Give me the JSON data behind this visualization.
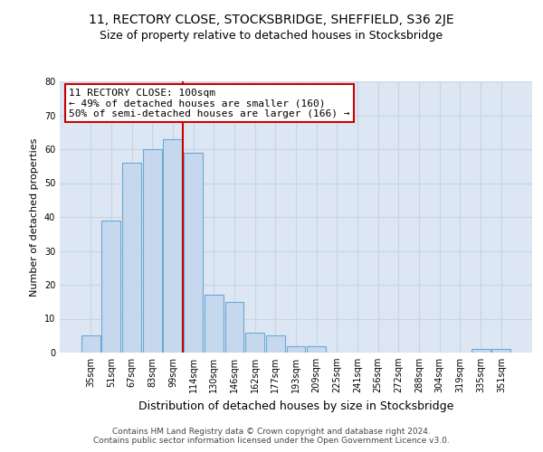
{
  "title": "11, RECTORY CLOSE, STOCKSBRIDGE, SHEFFIELD, S36 2JE",
  "subtitle": "Size of property relative to detached houses in Stocksbridge",
  "xlabel": "Distribution of detached houses by size in Stocksbridge",
  "ylabel": "Number of detached properties",
  "bar_labels": [
    "35sqm",
    "51sqm",
    "67sqm",
    "83sqm",
    "99sqm",
    "114sqm",
    "130sqm",
    "146sqm",
    "162sqm",
    "177sqm",
    "193sqm",
    "209sqm",
    "225sqm",
    "241sqm",
    "256sqm",
    "272sqm",
    "288sqm",
    "304sqm",
    "319sqm",
    "335sqm",
    "351sqm"
  ],
  "bar_values": [
    5,
    39,
    56,
    60,
    63,
    59,
    17,
    15,
    6,
    5,
    2,
    2,
    0,
    0,
    0,
    0,
    0,
    0,
    0,
    1,
    1
  ],
  "bar_color": "#c5d8ee",
  "bar_edgecolor": "#6aaad4",
  "vline_x": 4.5,
  "vline_color": "#cc0000",
  "annotation_text": "11 RECTORY CLOSE: 100sqm\n← 49% of detached houses are smaller (160)\n50% of semi-detached houses are larger (166) →",
  "annotation_box_edgecolor": "#cc0000",
  "ylim": [
    0,
    80
  ],
  "yticks": [
    0,
    10,
    20,
    30,
    40,
    50,
    60,
    70,
    80
  ],
  "grid_color": "#c8d4e4",
  "bg_color": "#dde6f3",
  "footer_text": "Contains HM Land Registry data © Crown copyright and database right 2024.\nContains public sector information licensed under the Open Government Licence v3.0.",
  "title_fontsize": 10,
  "subtitle_fontsize": 9,
  "xlabel_fontsize": 9,
  "ylabel_fontsize": 8,
  "tick_fontsize": 7,
  "annotation_fontsize": 8,
  "footer_fontsize": 6.5
}
